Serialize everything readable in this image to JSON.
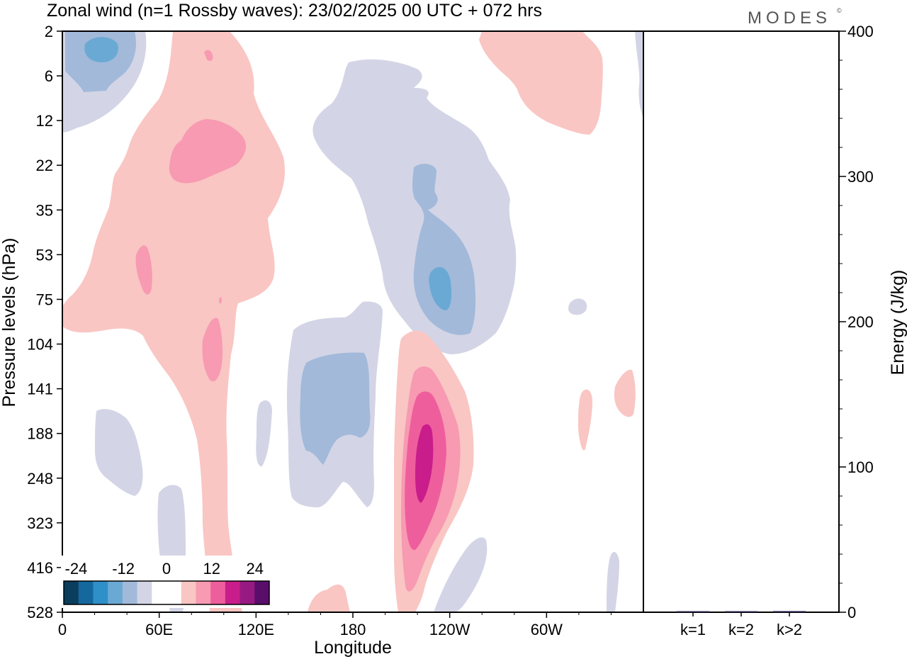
{
  "title": "Zonal wind (n=1 Rossby waves):  23/02/2025  00 UTC  + 072 hrs",
  "brand": "MODES",
  "brand_mark": "©",
  "chart_data": [
    {
      "type": "heatmap",
      "description_kind": "filled-contour longitude-pressure cross section",
      "xlabel": "Longitude",
      "ylabel": "Pressure levels (hPa)",
      "x_ticks": [
        "0",
        "60E",
        "120E",
        "180",
        "120W",
        "60W"
      ],
      "x_tick_degrees": [
        0,
        60,
        120,
        180,
        240,
        300
      ],
      "xlim": [
        0,
        360
      ],
      "y_ticks": [
        "2",
        "6",
        "12",
        "22",
        "35",
        "53",
        "75",
        "104",
        "141",
        "188",
        "248",
        "323",
        "416",
        "528"
      ],
      "colorbar": {
        "tick_labels": [
          "-24",
          "-12",
          "0",
          "12",
          "24"
        ],
        "levels": [
          -24,
          -20,
          -16,
          -12,
          -8,
          -4,
          4,
          8,
          12,
          16,
          20,
          24
        ],
        "colors": [
          "#0b3d5c",
          "#14689e",
          "#2f8fc8",
          "#6aa9d4",
          "#a3b9da",
          "#d3d5e6",
          "#ffffff",
          "#ffffff",
          "#f9c6c3",
          "#f79ab2",
          "#ef5e9c",
          "#c81d8a",
          "#971a82",
          "#5a0e6b"
        ]
      }
    },
    {
      "type": "bar",
      "categories": [
        "k=1",
        "k=2",
        "k>2"
      ],
      "values": [
        0.6,
        0.3,
        0.8
      ],
      "ylabel": "Energy (J/kg)",
      "ylim": [
        0,
        400
      ],
      "y_ticks": [
        0,
        100,
        200,
        300,
        400
      ],
      "bar_color": "#2a2350"
    }
  ]
}
